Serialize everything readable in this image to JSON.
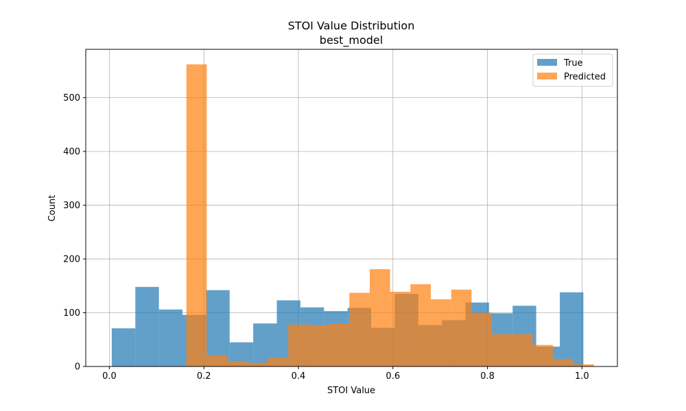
{
  "chart_data": {
    "type": "bar",
    "title": "STOI Value Distribution",
    "subtitle": "best_model",
    "xlabel": "STOI Value",
    "ylabel": "Count",
    "xlim": [
      -0.05,
      1.075
    ],
    "ylim": [
      0,
      590
    ],
    "xticks": [
      "0.0",
      "0.2",
      "0.4",
      "0.6",
      "0.8",
      "1.0"
    ],
    "xtick_values": [
      0.0,
      0.2,
      0.4,
      0.6,
      0.8,
      1.0
    ],
    "yticks": [
      "0",
      "100",
      "200",
      "300",
      "400",
      "500"
    ],
    "ytick_values": [
      0,
      100,
      200,
      300,
      400,
      500
    ],
    "grid": true,
    "legend_position": "top-right",
    "series": [
      {
        "name": "True",
        "color": "#1f77b4",
        "opacity": 0.7,
        "bin_start": 0.005,
        "bin_width": 0.0499,
        "counts": [
          71,
          148,
          106,
          96,
          142,
          45,
          80,
          123,
          110,
          103,
          109,
          72,
          135,
          77,
          86,
          119,
          99,
          113,
          37,
          138
        ]
      },
      {
        "name": "Predicted",
        "color": "#ff7f0e",
        "opacity": 0.7,
        "bin_start": 0.163,
        "bin_width": 0.0431,
        "counts": [
          562,
          21,
          10,
          7,
          16,
          78,
          77,
          80,
          137,
          181,
          139,
          153,
          125,
          143,
          100,
          60,
          60,
          40,
          14,
          4
        ]
      }
    ]
  }
}
